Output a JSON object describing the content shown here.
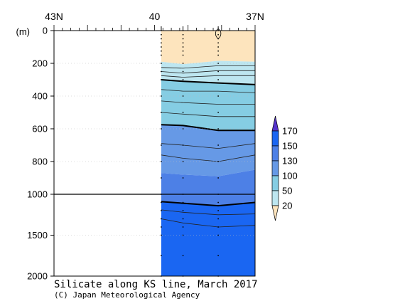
{
  "chart_data": {
    "type": "heatmap",
    "title": "Silicate along KS line, March 2017",
    "credit": "(C) Japan Meteorological Agency",
    "ylabel": "(m)",
    "x_ticks": [
      {
        "lat": 43,
        "label": "43N"
      },
      {
        "lat": 40,
        "label": "40"
      },
      {
        "lat": 37,
        "label": "37N"
      }
    ],
    "xlim": [
      43,
      37
    ],
    "y_ticks_upper": [
      {
        "depth": 0,
        "label": "0"
      },
      {
        "depth": 200,
        "label": "200"
      },
      {
        "depth": 400,
        "label": "400"
      },
      {
        "depth": 600,
        "label": "600"
      },
      {
        "depth": 800,
        "label": "800"
      },
      {
        "depth": 1000,
        "label": "1000"
      }
    ],
    "y_ticks_lower": [
      {
        "depth": 1500,
        "label": "1500"
      },
      {
        "depth": 2000,
        "label": "2000"
      }
    ],
    "ylim": [
      0,
      2000
    ],
    "y_scale_break_depth": 1000,
    "data_lat_range": [
      39.8,
      37.0
    ],
    "stations": [
      {
        "lat": 39.8,
        "depths": [
          0,
          25,
          50,
          75,
          100,
          125,
          150,
          200,
          250,
          300,
          400,
          500,
          600,
          700,
          800,
          900,
          1000,
          1100,
          1200,
          1300,
          1400,
          1500,
          1750,
          2000
        ]
      },
      {
        "lat": 39.15,
        "depths": [
          0,
          25,
          50,
          75,
          100,
          125,
          150,
          200,
          250,
          300,
          400,
          500,
          600,
          700,
          800,
          900,
          1000,
          1100,
          1200,
          1300,
          1400,
          1500,
          1750,
          2000
        ]
      },
      {
        "lat": 38.1,
        "depths": [
          0,
          25,
          50,
          75,
          100,
          125,
          150,
          200,
          250,
          300,
          400,
          500,
          600,
          700,
          800,
          900,
          1000,
          1100,
          1200,
          1300,
          1400,
          1500,
          1750,
          2000
        ]
      }
    ],
    "bands": [
      {
        "range": "<20",
        "color": "#fde4bd",
        "top": [
          0,
          0,
          0,
          0
        ],
        "bottom": [
          190,
          205,
          185,
          190
        ]
      },
      {
        "range": "20-50",
        "color": "#bde6f0",
        "top": [
          190,
          205,
          185,
          190
        ],
        "bottom": [
          300,
          310,
          320,
          330
        ]
      },
      {
        "range": "50-100",
        "color": "#85cde3",
        "top": [
          300,
          310,
          320,
          330
        ],
        "bottom": [
          575,
          580,
          610,
          610
        ]
      },
      {
        "range": "100-130",
        "color": "#6699e6",
        "top": [
          575,
          580,
          610,
          610
        ],
        "bottom": [
          870,
          880,
          890,
          850
        ]
      },
      {
        "range": "130-150",
        "color": "#4d80e6",
        "top": [
          870,
          880,
          890,
          850
        ],
        "bottom": [
          1090,
          1110,
          1140,
          1100
        ]
      },
      {
        "range": "150-170",
        "color": "#1a66f2",
        "top": [
          1090,
          1110,
          1140,
          1100
        ],
        "bottom": [
          2000,
          2000,
          2000,
          2000
        ]
      }
    ],
    "band_lats": [
      39.8,
      39.15,
      38.1,
      37.0
    ],
    "contours_thin": [
      [
        225,
        230,
        215,
        215
      ],
      [
        250,
        260,
        245,
        245
      ],
      [
        275,
        285,
        275,
        275
      ],
      [
        360,
        370,
        370,
        380
      ],
      [
        430,
        440,
        450,
        450
      ],
      [
        500,
        510,
        525,
        525
      ],
      [
        690,
        700,
        720,
        690
      ],
      [
        760,
        780,
        800,
        760
      ],
      [
        1190,
        1220,
        1250,
        1240
      ],
      [
        1300,
        1350,
        1400,
        1380
      ]
    ],
    "contours_thick": [
      [
        300,
        310,
        320,
        330
      ],
      [
        575,
        580,
        610,
        610
      ],
      [
        1090,
        1110,
        1140,
        1100
      ]
    ],
    "ref_line_depth": 1000,
    "ridge_markers": [
      {
        "lat": 38.1,
        "depth": 15,
        "symbol": "closed-contour"
      }
    ],
    "colorbar": {
      "levels": [
        20,
        50,
        100,
        130,
        150,
        170
      ],
      "colors": [
        "#fde4bd",
        "#bde6f0",
        "#85cde3",
        "#6699e6",
        "#4d80e6",
        "#1a66f2",
        "#5533cc"
      ],
      "labels": [
        "20",
        "50",
        "100",
        "130",
        "150",
        "170"
      ]
    }
  }
}
